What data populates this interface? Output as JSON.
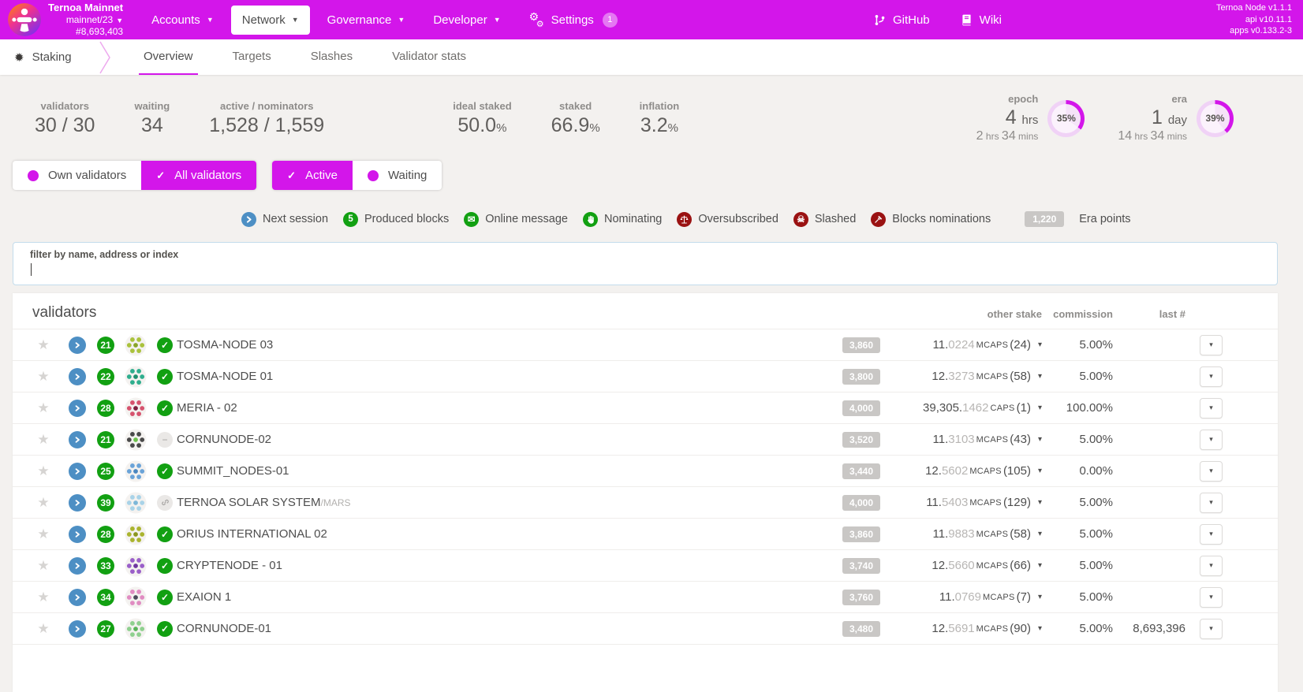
{
  "topbar": {
    "network_name": "Ternoa Mainnet",
    "chain": "mainnet/23",
    "block": "#8,693,403",
    "nav": [
      {
        "label": "Accounts",
        "caret": true
      },
      {
        "label": "Network",
        "caret": true,
        "active": true
      },
      {
        "label": "Governance",
        "caret": true
      },
      {
        "label": "Developer",
        "caret": true
      },
      {
        "label": "Settings",
        "icon": "gears",
        "badge": "1"
      }
    ],
    "links": [
      {
        "label": "GitHub",
        "icon": "github"
      },
      {
        "label": "Wiki",
        "icon": "book"
      }
    ],
    "version": [
      "Ternoa Node v1.1.1",
      "api v10.11.1",
      "apps v0.133.2-3"
    ]
  },
  "tabbar": {
    "section": "Staking",
    "tabs": [
      {
        "label": "Overview",
        "active": true
      },
      {
        "label": "Targets",
        "active": false
      },
      {
        "label": "Slashes",
        "active": false
      },
      {
        "label": "Validator stats",
        "active": false
      }
    ]
  },
  "summary": {
    "validators": {
      "label": "validators",
      "value": "30 / 30"
    },
    "waiting": {
      "label": "waiting",
      "value": "34"
    },
    "active": {
      "label": "active / nominators",
      "value": "1,528 / 1,559"
    },
    "ideal": {
      "label": "ideal staked",
      "value": "50.0",
      "suffix": "%"
    },
    "staked": {
      "label": "staked",
      "value": "66.9",
      "suffix": "%"
    },
    "inflation": {
      "label": "inflation",
      "value": "3.2",
      "suffix": "%"
    },
    "epoch": {
      "label": "epoch",
      "big": "4",
      "big_unit": "hrs",
      "elapsed_parts": [
        [
          "2",
          "hrs"
        ],
        [
          "34",
          "mins"
        ]
      ],
      "percent_label": "35%",
      "percent": 35
    },
    "era": {
      "label": "era",
      "big": "1",
      "big_unit": "day",
      "elapsed_parts": [
        [
          "14",
          "hrs"
        ],
        [
          "34",
          "mins"
        ]
      ],
      "percent_label": "39%",
      "percent": 39
    }
  },
  "toggle_groups": [
    {
      "buttons": [
        {
          "label": "Own validators",
          "active": false
        },
        {
          "label": "All validators",
          "active": true
        }
      ]
    },
    {
      "buttons": [
        {
          "label": "Active",
          "active": true
        },
        {
          "label": "Waiting",
          "active": false
        }
      ]
    }
  ],
  "legend": {
    "items": [
      {
        "icon": "chevron",
        "color": "#4d8fc4",
        "label": "Next session"
      },
      {
        "icon": "text",
        "glyph": "5",
        "color": "#12a012",
        "label": "Produced blocks"
      },
      {
        "icon": "envelope",
        "color": "#12a012",
        "label": "Online message"
      },
      {
        "icon": "hand",
        "color": "#12a012",
        "label": "Nominating"
      },
      {
        "icon": "scale",
        "color": "#9a1212",
        "label": "Oversubscribed"
      },
      {
        "icon": "skull",
        "color": "#9a1212",
        "label": "Slashed"
      },
      {
        "icon": "gavel",
        "color": "#9a1212",
        "label": "Blocks nominations"
      }
    ],
    "era_points_badge": "1,220",
    "era_points_label": "Era points"
  },
  "filter_input": {
    "label": "filter by name, address or index",
    "value": ""
  },
  "table": {
    "title": "validators",
    "columns": [
      "other stake",
      "commission",
      "last #"
    ],
    "accent_color": "#d316ea",
    "rows": [
      {
        "blocks": "21",
        "status": "ok",
        "name": "TOSMA-NODE 03",
        "name_suffix": "",
        "points": "3,860",
        "stake_main": "11",
        "stake_dec": "0224",
        "stake_unit": "MCAPS",
        "stake_count": "(24)",
        "commission": "5.00%",
        "last_block": "",
        "avatar_colors": [
          "#aac23c",
          "#88a428"
        ]
      },
      {
        "blocks": "22",
        "status": "ok",
        "name": "TOSMA-NODE 01",
        "name_suffix": "",
        "points": "3,800",
        "stake_main": "12",
        "stake_dec": "3273",
        "stake_unit": "MCAPS",
        "stake_count": "(58)",
        "commission": "5.00%",
        "last_block": "",
        "avatar_colors": [
          "#2fae8e",
          "#1f8f6f"
        ]
      },
      {
        "blocks": "28",
        "status": "ok",
        "name": "MERIA - 02",
        "name_suffix": "",
        "points": "4,000",
        "stake_main": "39,305",
        "stake_dec": "1462",
        "stake_unit": "CAPS",
        "stake_count": "(1)",
        "commission": "100.00%",
        "last_block": "",
        "avatar_colors": [
          "#d6536e",
          "#7e1f3f"
        ]
      },
      {
        "blocks": "21",
        "status": "minus",
        "name": "CORNUNODE-02",
        "name_suffix": "",
        "points": "3,520",
        "stake_main": "11",
        "stake_dec": "3103",
        "stake_unit": "MCAPS",
        "stake_count": "(43)",
        "commission": "5.00%",
        "last_block": "",
        "avatar_colors": [
          "#4a4a4a",
          "#6cc24a"
        ]
      },
      {
        "blocks": "25",
        "status": "ok",
        "name": "SUMMIT_NODES-01",
        "name_suffix": "",
        "points": "3,440",
        "stake_main": "12",
        "stake_dec": "5602",
        "stake_unit": "MCAPS",
        "stake_count": "(105)",
        "commission": "0.00%",
        "last_block": "",
        "avatar_colors": [
          "#6aa3d8",
          "#4a86c0"
        ]
      },
      {
        "blocks": "39",
        "status": "link",
        "name": "TERNOA SOLAR SYSTEM",
        "name_suffix": "/MARS",
        "points": "4,000",
        "stake_main": "11",
        "stake_dec": "5403",
        "stake_unit": "MCAPS",
        "stake_count": "(129)",
        "commission": "5.00%",
        "last_block": "",
        "avatar_colors": [
          "#a9d3e8",
          "#7db7d8"
        ]
      },
      {
        "blocks": "28",
        "status": "ok",
        "name": "ORIUS INTERNATIONAL 02",
        "name_suffix": "",
        "points": "3,860",
        "stake_main": "11",
        "stake_dec": "9883",
        "stake_unit": "MCAPS",
        "stake_count": "(58)",
        "commission": "5.00%",
        "last_block": "",
        "avatar_colors": [
          "#aab42f",
          "#8a961f"
        ]
      },
      {
        "blocks": "33",
        "status": "ok",
        "name": "CRYPTENODE - 01",
        "name_suffix": "",
        "points": "3,740",
        "stake_main": "12",
        "stake_dec": "5660",
        "stake_unit": "MCAPS",
        "stake_count": "(66)",
        "commission": "5.00%",
        "last_block": "",
        "avatar_colors": [
          "#9a5fc9",
          "#6f36a0"
        ]
      },
      {
        "blocks": "34",
        "status": "ok",
        "name": "EXAION 1",
        "name_suffix": "",
        "points": "3,760",
        "stake_main": "11",
        "stake_dec": "0769",
        "stake_unit": "MCAPS",
        "stake_count": "(7)",
        "commission": "5.00%",
        "last_block": "",
        "avatar_colors": [
          "#e08cc2",
          "#4a4a5a"
        ]
      },
      {
        "blocks": "27",
        "status": "ok",
        "name": "CORNUNODE-01",
        "name_suffix": "",
        "points": "3,480",
        "stake_main": "12",
        "stake_dec": "5691",
        "stake_unit": "MCAPS",
        "stake_count": "(90)",
        "commission": "5.00%",
        "last_block": "8,693,396",
        "avatar_colors": [
          "#8fd08f",
          "#5ab45a"
        ]
      }
    ]
  }
}
